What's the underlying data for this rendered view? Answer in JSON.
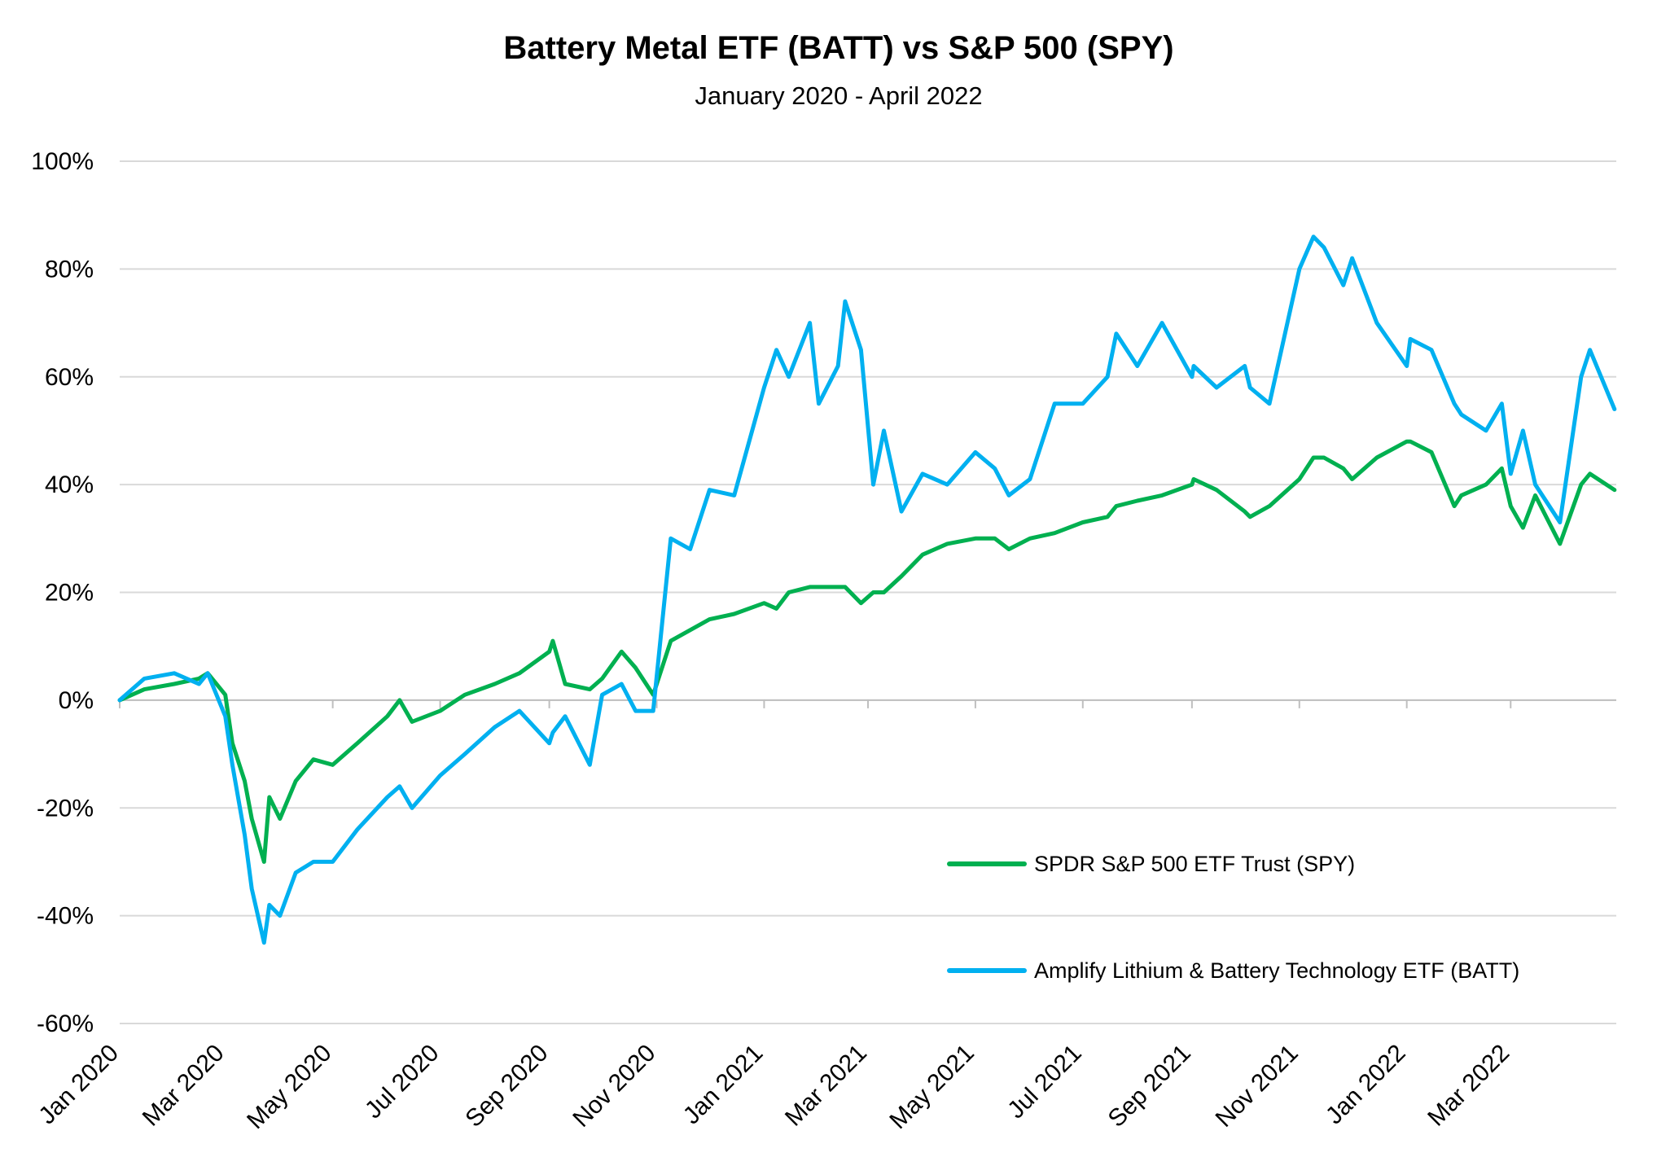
{
  "chart_data": {
    "type": "line",
    "title": "Battery Metal ETF (BATT) vs S&P 500 (SPY)",
    "subtitle": "January 2020 - April 2022",
    "xlabel": "",
    "ylabel": "",
    "x_tick_labels": [
      "Jan 2020",
      "Mar 2020",
      "May 2020",
      "Jul 2020",
      "Sep 2020",
      "Nov 2020",
      "Jan 2021",
      "Mar 2021",
      "May 2021",
      "Jul 2021",
      "Sep 2021",
      "Nov 2021",
      "Jan 2022",
      "Mar 2022"
    ],
    "y_tick_labels": [
      "100%",
      "80%",
      "60%",
      "40%",
      "20%",
      "0%",
      "-20%",
      "-40%",
      "-60%"
    ],
    "ylim": [
      -60,
      100
    ],
    "xlim": [
      "2020-01-01",
      "2022-04-30"
    ],
    "grid": "horizontal",
    "legend_position": "bottom-right",
    "x": [
      "2020-01-01",
      "2020-01-15",
      "2020-02-01",
      "2020-02-15",
      "2020-02-20",
      "2020-03-01",
      "2020-03-05",
      "2020-03-12",
      "2020-03-16",
      "2020-03-23",
      "2020-03-26",
      "2020-04-01",
      "2020-04-10",
      "2020-04-20",
      "2020-05-01",
      "2020-05-15",
      "2020-06-01",
      "2020-06-08",
      "2020-06-15",
      "2020-07-01",
      "2020-07-15",
      "2020-08-01",
      "2020-08-15",
      "2020-09-01",
      "2020-09-03",
      "2020-09-10",
      "2020-09-24",
      "2020-10-01",
      "2020-10-12",
      "2020-10-20",
      "2020-10-30",
      "2020-11-09",
      "2020-11-20",
      "2020-12-01",
      "2020-12-15",
      "2021-01-01",
      "2021-01-08",
      "2021-01-15",
      "2021-01-27",
      "2021-02-01",
      "2021-02-12",
      "2021-02-16",
      "2021-02-25",
      "2021-03-04",
      "2021-03-10",
      "2021-03-20",
      "2021-04-01",
      "2021-04-15",
      "2021-05-01",
      "2021-05-12",
      "2021-05-20",
      "2021-06-01",
      "2021-06-15",
      "2021-07-01",
      "2021-07-15",
      "2021-07-20",
      "2021-08-01",
      "2021-08-15",
      "2021-09-01",
      "2021-09-02",
      "2021-09-15",
      "2021-10-01",
      "2021-10-04",
      "2021-10-15",
      "2021-11-01",
      "2021-11-09",
      "2021-11-15",
      "2021-11-26",
      "2021-12-01",
      "2021-12-15",
      "2022-01-01",
      "2022-01-03",
      "2022-01-15",
      "2022-01-28",
      "2022-02-01",
      "2022-02-15",
      "2022-02-24",
      "2022-03-01",
      "2022-03-08",
      "2022-03-15",
      "2022-03-29",
      "2022-04-10",
      "2022-04-15",
      "2022-04-29"
    ],
    "series": [
      {
        "name": "SPDR S&P 500 ETF Trust (SPY)",
        "color": "#00B050",
        "values": [
          0,
          2,
          3,
          4,
          5,
          1,
          -8,
          -15,
          -22,
          -30,
          -18,
          -22,
          -15,
          -11,
          -12,
          -8,
          -3,
          0,
          -4,
          -2,
          1,
          3,
          5,
          9,
          11,
          3,
          2,
          4,
          9,
          6,
          1,
          11,
          13,
          15,
          16,
          18,
          17,
          20,
          21,
          21,
          21,
          21,
          18,
          20,
          20,
          23,
          27,
          29,
          30,
          30,
          28,
          30,
          31,
          33,
          34,
          36,
          37,
          38,
          40,
          41,
          39,
          35,
          34,
          36,
          41,
          45,
          45,
          43,
          41,
          45,
          48,
          48,
          46,
          36,
          38,
          40,
          43,
          36,
          32,
          38,
          29,
          40,
          42,
          39
        ]
      },
      {
        "name": "Amplify Lithium & Battery Technology ETF (BATT)",
        "color": "#00B0F0",
        "values": [
          0,
          4,
          5,
          3,
          5,
          -3,
          -12,
          -25,
          -35,
          -45,
          -38,
          -40,
          -32,
          -30,
          -30,
          -24,
          -18,
          -16,
          -20,
          -14,
          -10,
          -5,
          -2,
          -8,
          -6,
          -3,
          -12,
          1,
          3,
          -2,
          -2,
          30,
          28,
          39,
          38,
          58,
          65,
          60,
          70,
          55,
          62,
          74,
          65,
          40,
          50,
          35,
          42,
          40,
          46,
          43,
          38,
          41,
          55,
          55,
          60,
          68,
          62,
          70,
          60,
          62,
          58,
          62,
          58,
          55,
          80,
          86,
          84,
          77,
          82,
          70,
          62,
          67,
          65,
          55,
          53,
          50,
          55,
          42,
          50,
          40,
          33,
          60,
          65,
          54
        ]
      }
    ]
  }
}
